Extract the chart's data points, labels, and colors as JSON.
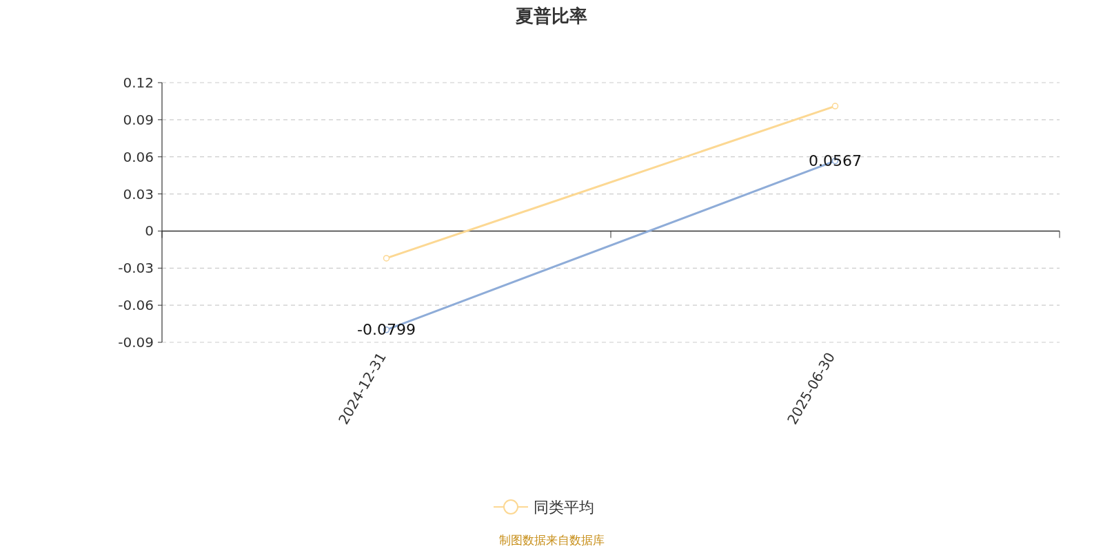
{
  "chart_data": {
    "type": "line",
    "title": "夏普比率",
    "categories": [
      "2024-12-31",
      "2025-06-30"
    ],
    "series": [
      {
        "color": "#8eacd8",
        "values": [
          -0.0799,
          0.0567
        ],
        "value_labels": [
          "-0.0799",
          "0.0567"
        ]
      },
      {
        "name": "同类平均",
        "color": "#fcd893",
        "values": [
          -0.022,
          0.101
        ]
      }
    ],
    "ylim": [
      -0.09,
      0.12
    ],
    "yticks": [
      -0.09,
      -0.06,
      -0.03,
      0,
      0.03,
      0.06,
      0.09,
      0.12
    ],
    "grid": "y",
    "legend": "bottom",
    "marker": "circle",
    "line_style": "solid",
    "annotations": [
      "制图数据来自数据库"
    ]
  }
}
